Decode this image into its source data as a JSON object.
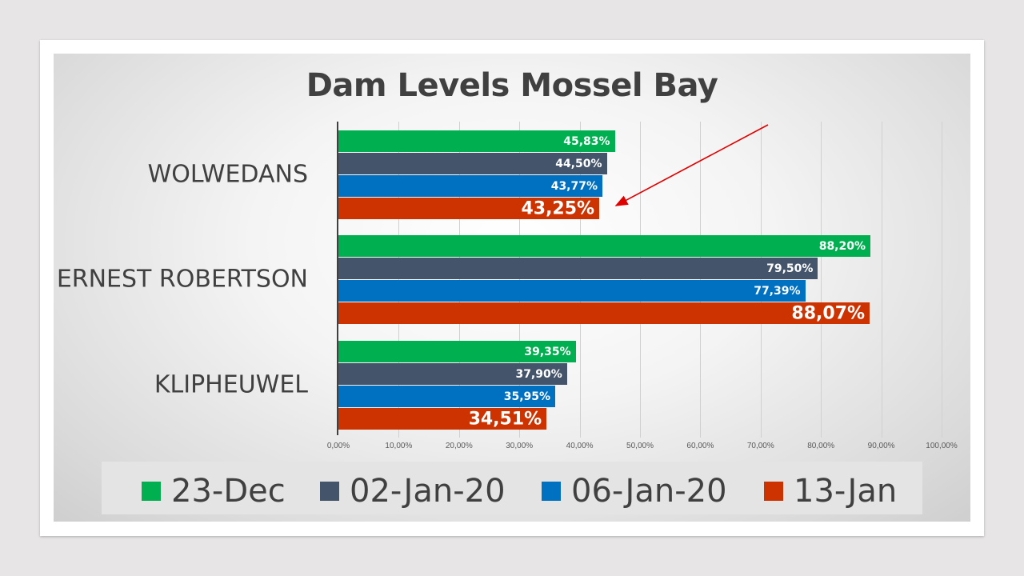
{
  "chart_data": {
    "type": "bar",
    "orientation": "horizontal",
    "title": "Dam Levels Mossel Bay",
    "categories": [
      "WOLWEDANS",
      "ERNEST ROBERTSON",
      "KLIPHEUWEL"
    ],
    "series": [
      {
        "name": "23-Dec",
        "color": "#00b050",
        "values": [
          45.83,
          88.2,
          39.35
        ],
        "labels": [
          "45,83%",
          "88,20%",
          "39,35%"
        ]
      },
      {
        "name": "02-Jan-20",
        "color": "#44546a",
        "values": [
          44.5,
          79.5,
          37.9
        ],
        "labels": [
          "44,50%",
          "79,50%",
          "37,90%"
        ]
      },
      {
        "name": "06-Jan-20",
        "color": "#0070c0",
        "values": [
          43.77,
          77.39,
          35.95
        ],
        "labels": [
          "43,77%",
          "77,39%",
          "35,95%"
        ]
      },
      {
        "name": "13-Jan",
        "color": "#cc3300",
        "values": [
          43.25,
          88.07,
          34.51
        ],
        "labels": [
          "43,25%",
          "88,07%",
          "34,51%"
        ]
      }
    ],
    "xlim": [
      0,
      100
    ],
    "xticks": [
      "0,00%",
      "10,00%",
      "20,00%",
      "30,00%",
      "40,00%",
      "50,00%",
      "60,00%",
      "70,00%",
      "80,00%",
      "90,00%",
      "100,00%"
    ],
    "grid": true,
    "legend_position": "bottom",
    "annotation": {
      "type": "arrow",
      "color": "#ff0000",
      "points_to": "WOLWEDANS 13-Jan"
    }
  }
}
